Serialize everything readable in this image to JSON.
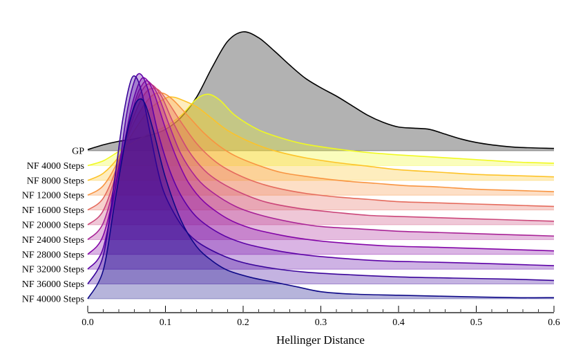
{
  "chart_data": {
    "type": "area",
    "subtype": "ridgeline",
    "title": "",
    "xlabel": "Hellinger Distance",
    "ylabel": "",
    "xlim": [
      0.0,
      0.6
    ],
    "xticks": [
      0.0,
      0.1,
      0.2,
      0.3,
      0.4,
      0.5,
      0.6
    ],
    "xtick_labels": [
      "0.0",
      "0.1",
      "0.2",
      "0.3",
      "0.4",
      "0.5",
      "0.6"
    ],
    "grid": false,
    "legend": "none",
    "series": [
      {
        "name": "GP",
        "color": "#000000",
        "fill": "#7f7f7f",
        "peak": 0.2,
        "x": [
          0,
          0.02,
          0.04,
          0.06,
          0.08,
          0.1,
          0.12,
          0.14,
          0.16,
          0.18,
          0.2,
          0.22,
          0.24,
          0.26,
          0.28,
          0.3,
          0.32,
          0.34,
          0.36,
          0.38,
          0.4,
          0.42,
          0.44,
          0.46,
          0.48,
          0.5,
          0.52,
          0.55,
          0.6
        ],
        "y": [
          0.01,
          0.05,
          0.08,
          0.1,
          0.13,
          0.18,
          0.28,
          0.45,
          0.7,
          0.92,
          1.0,
          0.95,
          0.84,
          0.72,
          0.61,
          0.53,
          0.46,
          0.38,
          0.3,
          0.24,
          0.2,
          0.19,
          0.18,
          0.14,
          0.1,
          0.07,
          0.05,
          0.03,
          0.02
        ]
      },
      {
        "name": "NF 4000 Steps",
        "color": "#f0f921",
        "fill": "#f0f921",
        "peak": 0.155,
        "x": [
          0,
          0.02,
          0.04,
          0.06,
          0.08,
          0.1,
          0.12,
          0.14,
          0.155,
          0.17,
          0.19,
          0.22,
          0.25,
          0.28,
          0.32,
          0.36,
          0.4,
          0.45,
          0.5,
          0.55,
          0.6
        ],
        "y": [
          0.0,
          0.04,
          0.12,
          0.2,
          0.27,
          0.33,
          0.42,
          0.56,
          0.6,
          0.55,
          0.42,
          0.3,
          0.23,
          0.18,
          0.14,
          0.11,
          0.09,
          0.07,
          0.05,
          0.03,
          0.02
        ]
      },
      {
        "name": "NF 8000 Steps",
        "color": "#fdc328",
        "fill": "#fdc328",
        "peak": 0.11,
        "x": [
          0,
          0.02,
          0.04,
          0.06,
          0.08,
          0.1,
          0.11,
          0.12,
          0.14,
          0.16,
          0.18,
          0.21,
          0.24,
          0.28,
          0.32,
          0.36,
          0.4,
          0.45,
          0.5,
          0.55,
          0.6
        ],
        "y": [
          0.0,
          0.06,
          0.2,
          0.42,
          0.6,
          0.69,
          0.7,
          0.68,
          0.62,
          0.52,
          0.42,
          0.32,
          0.25,
          0.19,
          0.15,
          0.12,
          0.09,
          0.07,
          0.05,
          0.04,
          0.03
        ]
      },
      {
        "name": "NF 12000 Steps",
        "color": "#f89441",
        "fill": "#f89441",
        "peak": 0.095,
        "x": [
          0,
          0.02,
          0.04,
          0.06,
          0.08,
          0.095,
          0.11,
          0.13,
          0.15,
          0.17,
          0.19,
          0.22,
          0.25,
          0.29,
          0.33,
          0.37,
          0.41,
          0.45,
          0.5,
          0.55,
          0.6
        ],
        "y": [
          0.0,
          0.08,
          0.3,
          0.62,
          0.82,
          0.86,
          0.8,
          0.66,
          0.52,
          0.41,
          0.33,
          0.25,
          0.19,
          0.15,
          0.12,
          0.1,
          0.08,
          0.07,
          0.05,
          0.04,
          0.03
        ]
      },
      {
        "name": "NF 16000 Steps",
        "color": "#e56b5d",
        "fill": "#e56b5d",
        "peak": 0.088,
        "x": [
          0,
          0.02,
          0.04,
          0.06,
          0.075,
          0.088,
          0.1,
          0.12,
          0.14,
          0.16,
          0.18,
          0.21,
          0.24,
          0.28,
          0.32,
          0.36,
          0.4,
          0.45,
          0.5,
          0.55,
          0.6
        ],
        "y": [
          0.0,
          0.1,
          0.4,
          0.8,
          0.99,
          1.02,
          0.94,
          0.74,
          0.56,
          0.43,
          0.34,
          0.25,
          0.19,
          0.14,
          0.11,
          0.09,
          0.07,
          0.06,
          0.05,
          0.04,
          0.03
        ]
      },
      {
        "name": "NF 20000 Steps",
        "color": "#cb4679",
        "fill": "#cb4679",
        "peak": 0.082,
        "x": [
          0,
          0.02,
          0.04,
          0.06,
          0.072,
          0.082,
          0.095,
          0.11,
          0.13,
          0.15,
          0.17,
          0.2,
          0.23,
          0.27,
          0.31,
          0.36,
          0.4,
          0.45,
          0.5,
          0.55,
          0.6
        ],
        "y": [
          0.0,
          0.12,
          0.5,
          0.98,
          1.15,
          1.18,
          1.08,
          0.86,
          0.62,
          0.46,
          0.36,
          0.26,
          0.19,
          0.14,
          0.11,
          0.08,
          0.07,
          0.06,
          0.05,
          0.04,
          0.03
        ]
      },
      {
        "name": "NF 24000 Steps",
        "color": "#a82296",
        "fill": "#a82296",
        "peak": 0.078,
        "x": [
          0,
          0.02,
          0.04,
          0.06,
          0.07,
          0.078,
          0.09,
          0.105,
          0.12,
          0.14,
          0.16,
          0.19,
          0.22,
          0.26,
          0.3,
          0.35,
          0.4,
          0.45,
          0.5,
          0.55,
          0.6
        ],
        "y": [
          0.0,
          0.14,
          0.6,
          1.14,
          1.3,
          1.33,
          1.22,
          0.96,
          0.72,
          0.52,
          0.4,
          0.28,
          0.21,
          0.15,
          0.11,
          0.09,
          0.07,
          0.06,
          0.05,
          0.04,
          0.03
        ]
      },
      {
        "name": "NF 28000 Steps",
        "color": "#8305a7",
        "fill": "#8305a7",
        "peak": 0.074,
        "x": [
          0,
          0.02,
          0.04,
          0.055,
          0.066,
          0.074,
          0.085,
          0.1,
          0.115,
          0.13,
          0.15,
          0.18,
          0.21,
          0.25,
          0.29,
          0.34,
          0.39,
          0.45,
          0.5,
          0.55,
          0.6
        ],
        "y": [
          0.0,
          0.16,
          0.7,
          1.2,
          1.44,
          1.48,
          1.36,
          1.06,
          0.8,
          0.6,
          0.44,
          0.3,
          0.22,
          0.16,
          0.12,
          0.09,
          0.07,
          0.06,
          0.05,
          0.04,
          0.03
        ]
      },
      {
        "name": "NF 32000 Steps",
        "color": "#5c01a6",
        "fill": "#5c01a6",
        "peak": 0.068,
        "x": [
          0,
          0.02,
          0.04,
          0.05,
          0.06,
          0.068,
          0.078,
          0.09,
          0.105,
          0.12,
          0.14,
          0.17,
          0.2,
          0.24,
          0.28,
          0.33,
          0.38,
          0.44,
          0.5,
          0.55,
          0.6
        ],
        "y": [
          0.0,
          0.18,
          0.85,
          1.3,
          1.58,
          1.64,
          1.5,
          1.16,
          0.84,
          0.62,
          0.44,
          0.3,
          0.22,
          0.16,
          0.12,
          0.09,
          0.07,
          0.06,
          0.05,
          0.04,
          0.03
        ]
      },
      {
        "name": "NF 36000 Steps",
        "color": "#3a049a",
        "fill": "#3a049a",
        "peak": 0.062,
        "x": [
          0,
          0.02,
          0.035,
          0.045,
          0.055,
          0.062,
          0.07,
          0.08,
          0.09,
          0.1,
          0.12,
          0.14,
          0.17,
          0.2,
          0.24,
          0.28,
          0.33,
          0.4,
          0.47,
          0.55,
          0.6
        ],
        "y": [
          0.0,
          0.24,
          0.9,
          1.38,
          1.7,
          1.74,
          1.6,
          1.28,
          0.96,
          0.74,
          0.5,
          0.36,
          0.25,
          0.18,
          0.13,
          0.1,
          0.08,
          0.06,
          0.05,
          0.04,
          0.03
        ]
      },
      {
        "name": "NF 40000 Steps",
        "color": "#0d0887",
        "fill": "#0d0887",
        "peak": 0.068,
        "x": [
          0,
          0.02,
          0.035,
          0.05,
          0.06,
          0.068,
          0.075,
          0.085,
          0.1,
          0.12,
          0.14,
          0.16,
          0.18,
          0.21,
          0.24,
          0.27,
          0.3,
          0.34,
          0.4,
          0.47,
          0.55,
          0.6
        ],
        "y": [
          0.0,
          0.24,
          0.82,
          1.38,
          1.62,
          1.68,
          1.62,
          1.4,
          1.02,
          0.66,
          0.44,
          0.32,
          0.24,
          0.18,
          0.14,
          0.1,
          0.06,
          0.04,
          0.03,
          0.02,
          0.01,
          0.01
        ]
      }
    ]
  }
}
